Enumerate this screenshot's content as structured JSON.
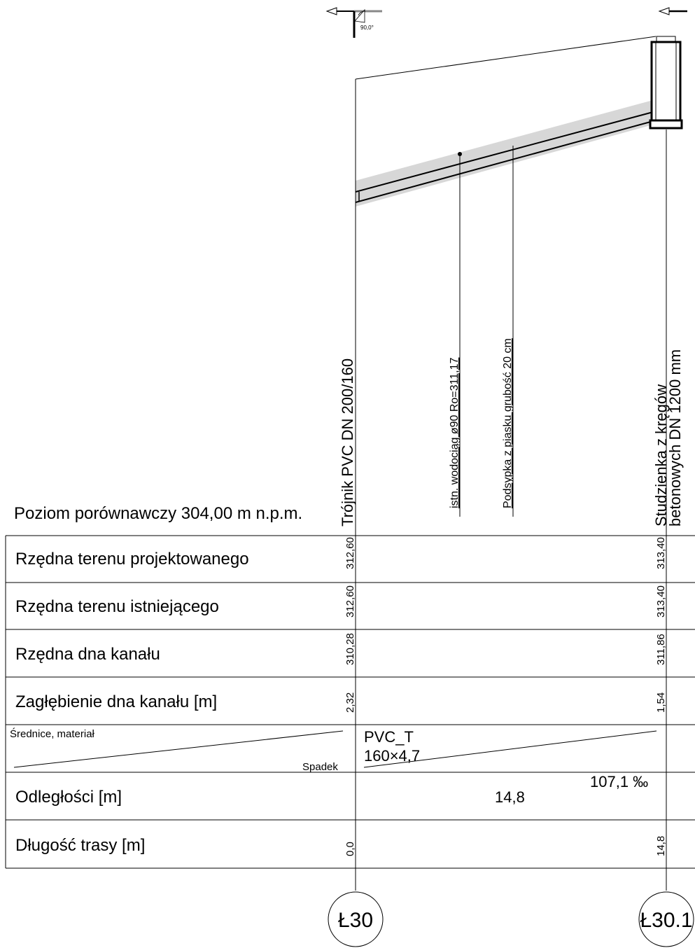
{
  "profile": {
    "datum_label": "Poziom porównawczy 304,00 m n.p.m.",
    "left_node": {
      "annotation": "Trójnik PVC DN 200/160",
      "id": "Ł30",
      "angle": "90,0°"
    },
    "right_node": {
      "annotation_line1": "Studzienka z kręgów",
      "annotation_line2": "betonowych DN 1200 mm",
      "id": "Ł30.1"
    },
    "crossing_annotations": [
      "istn. wodociąg  ø90  Ro=311,17",
      "Podsypka z piasku grubość 20 cm"
    ]
  },
  "table": {
    "rows": [
      {
        "label": "Rzędna terenu projektowanego",
        "left": "312,60",
        "right": "313,40"
      },
      {
        "label": "Rzędna terenu istniejącego",
        "left": "312,60",
        "right": "313,40"
      },
      {
        "label": "Rzędna dna kanału",
        "left": "310,28",
        "right": "311,86"
      },
      {
        "label": "Zagłębienie dna kanału [m]",
        "left": "2,32",
        "right": "1,54"
      }
    ],
    "pipe_row": {
      "label_top": "Średnice, materiał",
      "label_bottom": "Spadek",
      "material": "PVC_T",
      "diameter": "160×4,7",
      "slope": "107,1 ‰"
    },
    "distance_row": {
      "label": "Odległości [m]",
      "value": "14,8"
    },
    "length_row": {
      "label": "Długość trasy [m]",
      "left": "0,0",
      "right": "14,8"
    }
  }
}
